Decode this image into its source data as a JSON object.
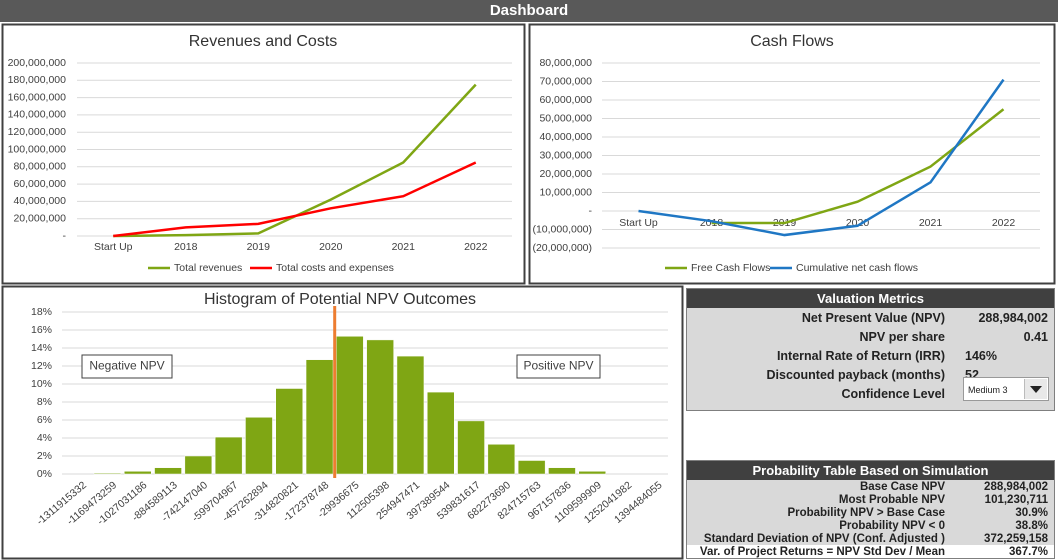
{
  "header": {
    "title": "Dashboard"
  },
  "chart_data": [
    {
      "type": "line",
      "title": "Revenues and Costs",
      "categories": [
        "Start Up",
        "2018",
        "2019",
        "2020",
        "2021",
        "2022"
      ],
      "series": [
        {
          "name": "Total revenues",
          "color": "#7fa614",
          "values": [
            0,
            1000000,
            3000000,
            42000000,
            85000000,
            175000000
          ]
        },
        {
          "name": "Total costs and expenses",
          "color": "#ff0000",
          "values": [
            0,
            10000000,
            14000000,
            32000000,
            46000000,
            85000000
          ]
        }
      ],
      "ylim": [
        0,
        200000000
      ],
      "yticks": [
        {
          "value": 0,
          "label": "-"
        },
        {
          "value": 20000000,
          "label": "20,000,000"
        },
        {
          "value": 40000000,
          "label": "40,000,000"
        },
        {
          "value": 60000000,
          "label": "60,000,000"
        },
        {
          "value": 80000000,
          "label": "80,000,000"
        },
        {
          "value": 100000000,
          "label": "100,000,000"
        },
        {
          "value": 120000000,
          "label": "120,000,000"
        },
        {
          "value": 140000000,
          "label": "140,000,000"
        },
        {
          "value": 160000000,
          "label": "160,000,000"
        },
        {
          "value": 180000000,
          "label": "180,000,000"
        },
        {
          "value": 200000000,
          "label": "200,000,000"
        }
      ],
      "grid": true,
      "legend": "bottom"
    },
    {
      "type": "line",
      "title": "Cash Flows",
      "categories": [
        "Start Up",
        "2018",
        "2019",
        "2020",
        "2021",
        "2022"
      ],
      "series": [
        {
          "name": "Free Cash Flows",
          "color": "#7fa614",
          "values": [
            null,
            -6500000,
            -6500000,
            5000000,
            24000000,
            55000000
          ]
        },
        {
          "name": "Cumulative net cash flows",
          "color": "#1f77c4",
          "values": [
            0,
            -5500000,
            -13000000,
            -8000000,
            15500000,
            71000000
          ]
        }
      ],
      "ylim": [
        -20000000,
        80000000
      ],
      "yticks": [
        {
          "value": -20000000,
          "label": "(20,000,000)"
        },
        {
          "value": -10000000,
          "label": "(10,000,000)"
        },
        {
          "value": 0,
          "label": "-"
        },
        {
          "value": 10000000,
          "label": "10,000,000"
        },
        {
          "value": 20000000,
          "label": "20,000,000"
        },
        {
          "value": 30000000,
          "label": "30,000,000"
        },
        {
          "value": 40000000,
          "label": "40,000,000"
        },
        {
          "value": 50000000,
          "label": "50,000,000"
        },
        {
          "value": 60000000,
          "label": "60,000,000"
        },
        {
          "value": 70000000,
          "label": "70,000,000"
        },
        {
          "value": 80000000,
          "label": "80,000,000"
        }
      ],
      "grid": true,
      "legend": "bottom"
    },
    {
      "type": "bar",
      "title": "Histogram of Potential NPV Outcomes",
      "color": "#7fa614",
      "categories": [
        "-1311915332",
        "-1169473259",
        "-1027031186",
        "-884589113",
        "-742147040",
        "-599704967",
        "-457262894",
        "-314820821",
        "-172378748",
        "-29936675",
        "112505398",
        "254947471",
        "397389544",
        "539831617",
        "682273690",
        "824715763",
        "967157836",
        "1109599909",
        "1252041982",
        "1394484055"
      ],
      "values": [
        0,
        0.1,
        0.3,
        0.7,
        2.0,
        4.1,
        6.3,
        9.5,
        12.7,
        15.3,
        14.9,
        13.1,
        9.1,
        5.9,
        3.3,
        1.5,
        0.7,
        0.3,
        0,
        0
      ],
      "ylim": [
        0,
        18
      ],
      "yticks": [
        {
          "value": 0,
          "label": "0%"
        },
        {
          "value": 2,
          "label": "2%"
        },
        {
          "value": 4,
          "label": "4%"
        },
        {
          "value": 6,
          "label": "6%"
        },
        {
          "value": 8,
          "label": "8%"
        },
        {
          "value": 10,
          "label": "10%"
        },
        {
          "value": 12,
          "label": "12%"
        },
        {
          "value": 14,
          "label": "14%"
        },
        {
          "value": 16,
          "label": "16%"
        },
        {
          "value": 18,
          "label": "18%"
        }
      ],
      "grid": true,
      "annotations": [
        "Negative NPV",
        "Positive NPV"
      ]
    }
  ],
  "valuation_metrics": {
    "title": "Valuation Metrics",
    "rows": [
      [
        "Net Present Value (NPV)",
        "288,984,002"
      ],
      [
        "NPV per share",
        "0.41"
      ],
      [
        "Internal Rate of Return (IRR)",
        "146%"
      ],
      [
        "Discounted payback (months)",
        "52"
      ],
      [
        "Confidence Level",
        "Medium 3"
      ]
    ]
  },
  "probability_table": {
    "title": "Probability Table Based on Simulation",
    "rows": [
      [
        "Base Case NPV",
        "288,984,002"
      ],
      [
        "Most Probable NPV",
        "101,230,711"
      ],
      [
        "Probability NPV > Base Case",
        "30.9%"
      ],
      [
        "Probability NPV < 0",
        "38.8%"
      ],
      [
        "Standard Deviation of NPV (Conf. Adjusted )",
        "372,259,158"
      ],
      [
        "Var. of Project Returns = NPV Std Dev / Mean",
        "367.7%"
      ]
    ]
  }
}
